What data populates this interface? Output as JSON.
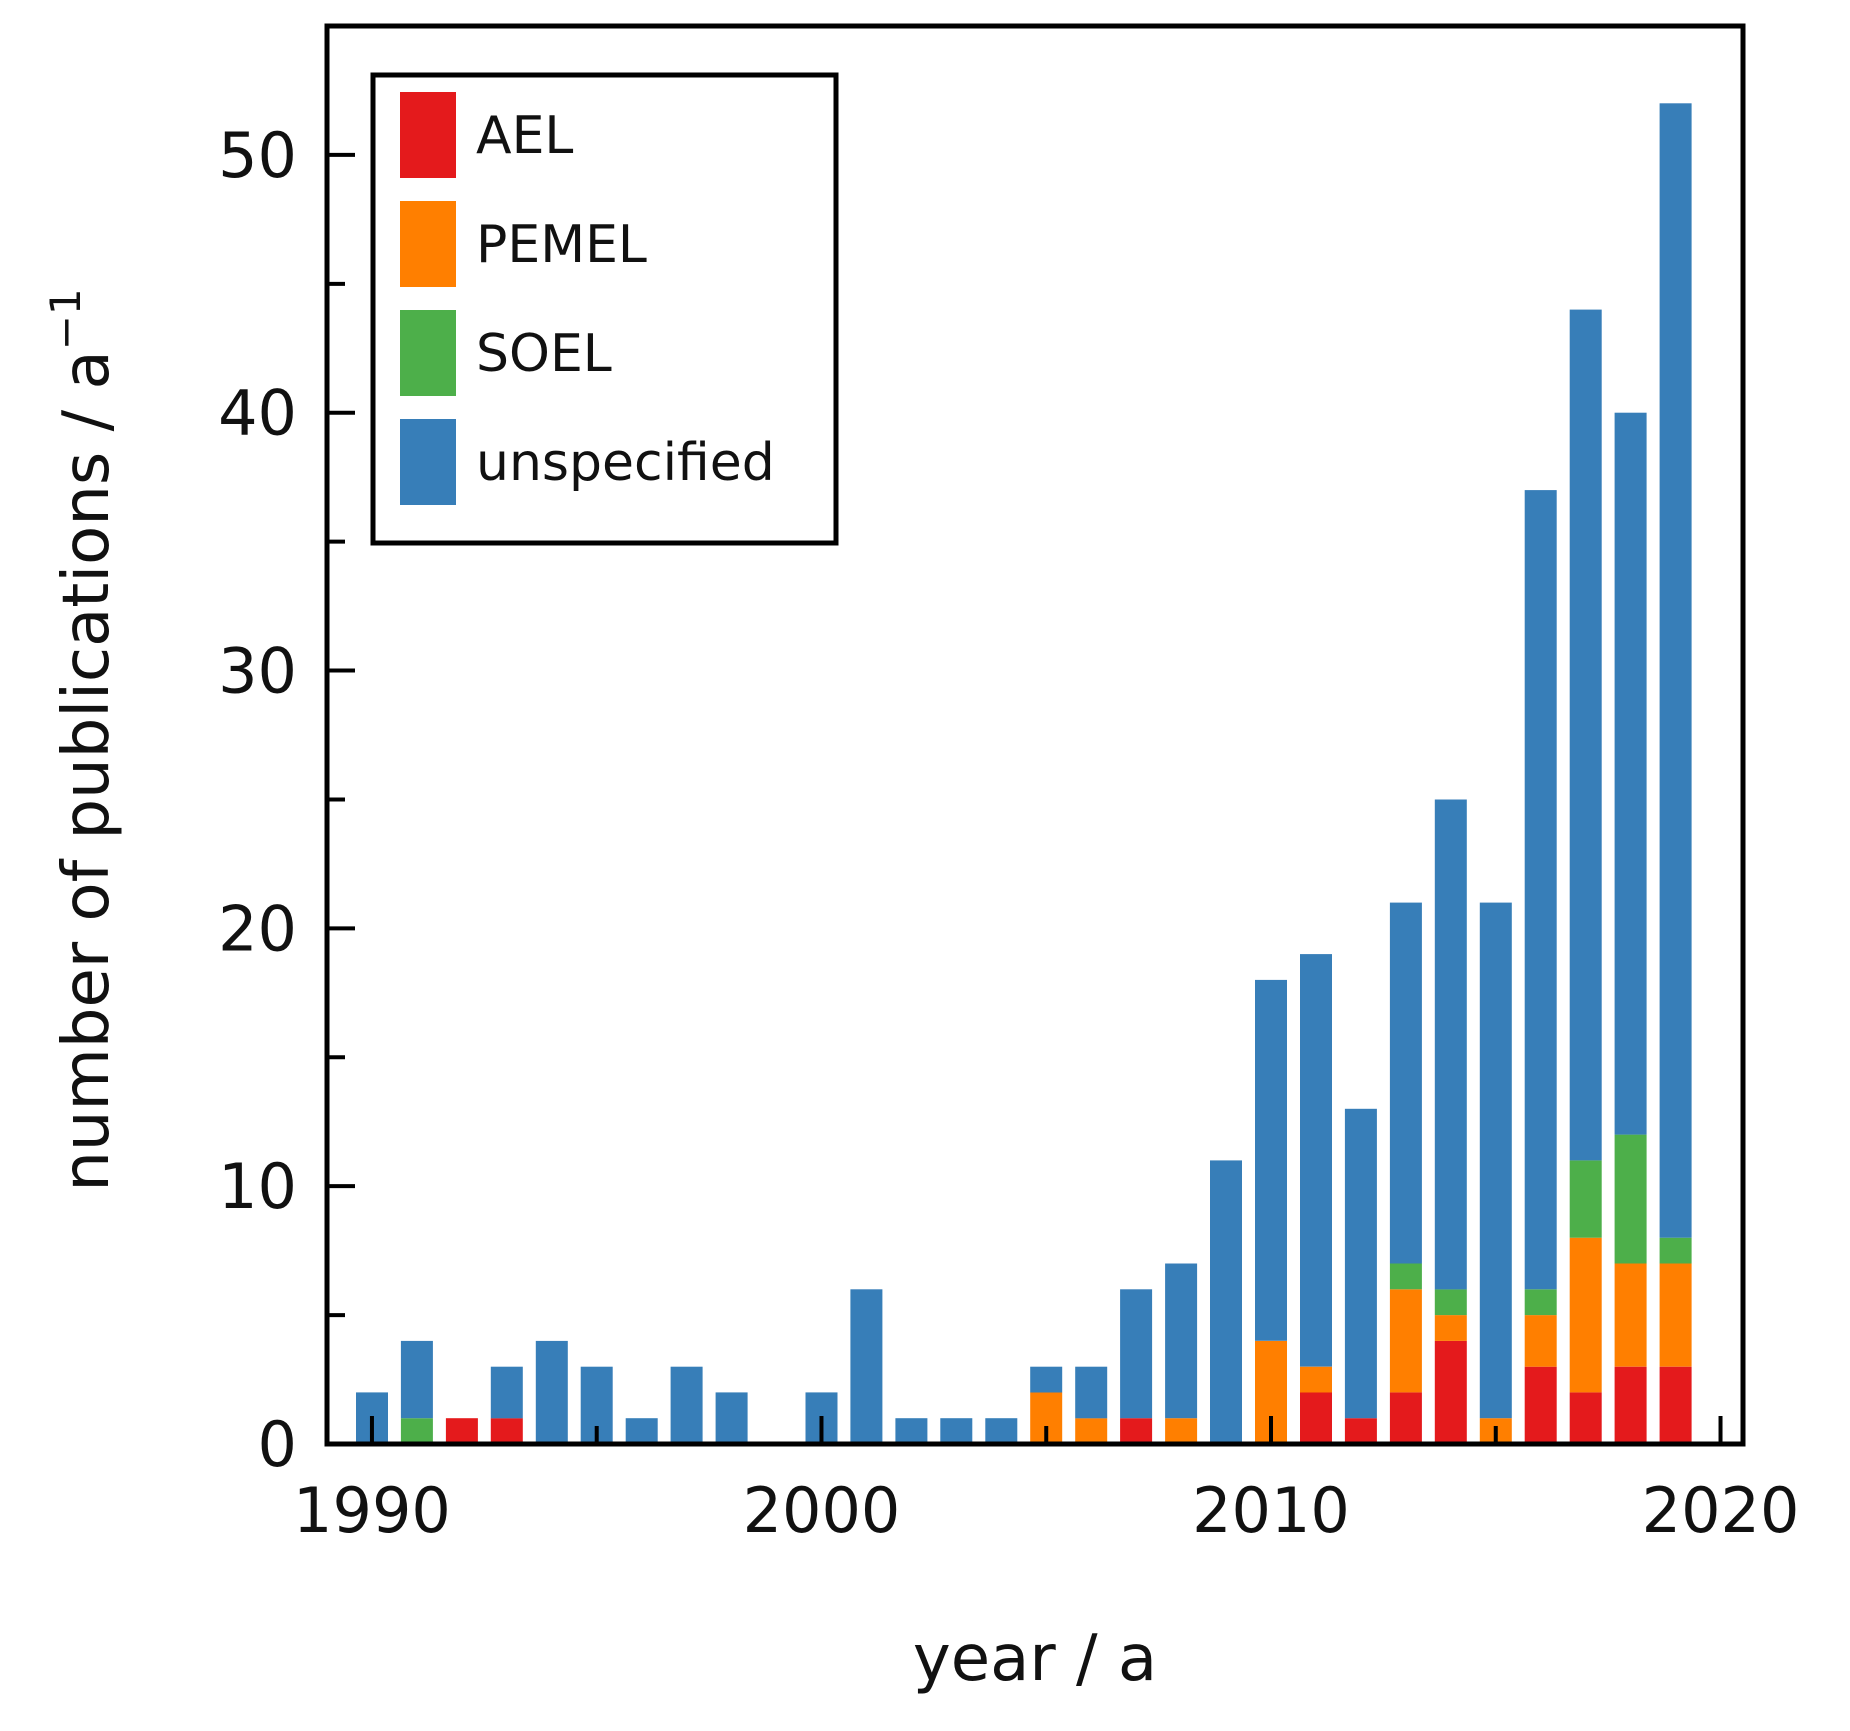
{
  "chart_data": {
    "type": "bar",
    "stacked": true,
    "title": "",
    "xlabel": "year / a",
    "ylabel_main": "number of publications / a",
    "ylabel_sup": "−1",
    "xlim": [
      1989,
      2020.5
    ],
    "ylim": [
      0,
      55
    ],
    "xticks": [
      1990,
      2000,
      2010,
      2020
    ],
    "xticks_minor": [
      1995,
      2005,
      2015
    ],
    "yticks": [
      0,
      10,
      20,
      30,
      40,
      50
    ],
    "yticks_minor": [
      5,
      15,
      25,
      35,
      45
    ],
    "legend_position": "top-left",
    "categories": [
      1990,
      1991,
      1992,
      1993,
      1994,
      1995,
      1996,
      1997,
      1998,
      1999,
      2000,
      2001,
      2002,
      2003,
      2004,
      2005,
      2006,
      2007,
      2008,
      2009,
      2010,
      2011,
      2012,
      2013,
      2014,
      2015,
      2016,
      2017,
      2018,
      2019
    ],
    "series": [
      {
        "name": "AEL",
        "color": "#e41a1c",
        "values": [
          0,
          0,
          1,
          1,
          0,
          0,
          0,
          0,
          0,
          0,
          0,
          0,
          0,
          0,
          0,
          0,
          0,
          1,
          0,
          0,
          0,
          2,
          1,
          2,
          4,
          0,
          3,
          2,
          3,
          3
        ]
      },
      {
        "name": "PEMEL",
        "color": "#ff7f00",
        "values": [
          0,
          0,
          0,
          0,
          0,
          0,
          0,
          0,
          0,
          0,
          0,
          0,
          0,
          0,
          0,
          2,
          1,
          0,
          1,
          0,
          4,
          1,
          0,
          4,
          1,
          1,
          2,
          6,
          4,
          4
        ]
      },
      {
        "name": "SOEL",
        "color": "#4daf4a",
        "values": [
          0,
          1,
          0,
          0,
          0,
          0,
          0,
          0,
          0,
          0,
          0,
          0,
          0,
          0,
          0,
          0,
          0,
          0,
          0,
          0,
          0,
          0,
          0,
          1,
          1,
          0,
          1,
          3,
          5,
          1
        ]
      },
      {
        "name": "unspecified",
        "color": "#377eb8",
        "values": [
          2,
          3,
          0,
          2,
          4,
          3,
          1,
          3,
          2,
          0,
          2,
          6,
          1,
          1,
          1,
          1,
          2,
          5,
          6,
          11,
          14,
          16,
          12,
          14,
          19,
          20,
          31,
          33,
          28,
          44
        ]
      }
    ]
  }
}
